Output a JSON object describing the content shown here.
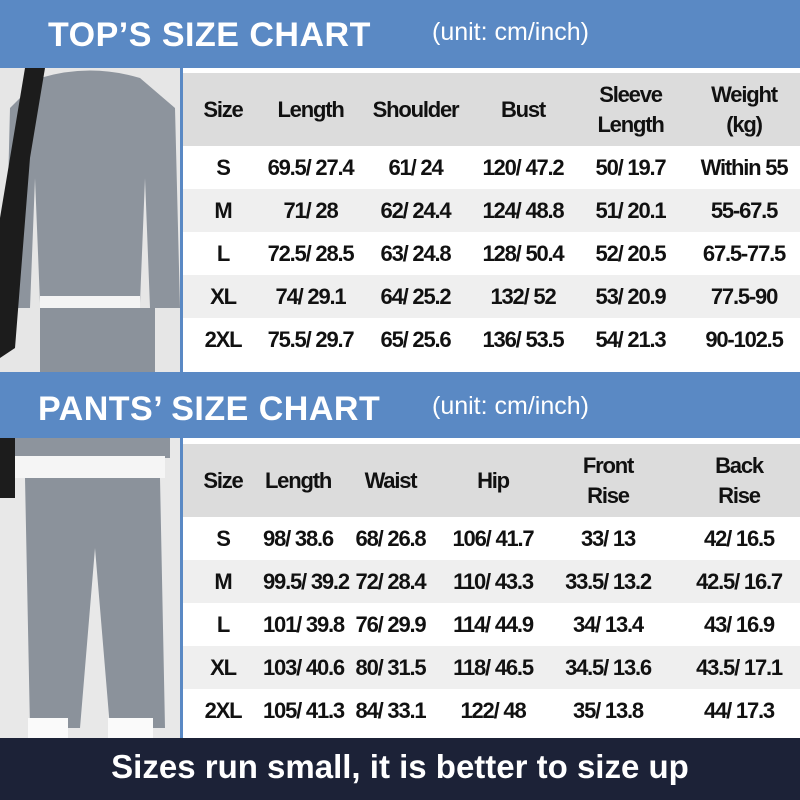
{
  "tops": {
    "title": "TOP’S SIZE CHART",
    "unit": "(unit: cm/inch)",
    "headers": [
      [
        "Size",
        ""
      ],
      [
        "Length",
        ""
      ],
      [
        "Shoulder",
        ""
      ],
      [
        "Bust",
        ""
      ],
      [
        "Sleeve",
        "Length"
      ],
      [
        "Weight",
        "(kg)"
      ]
    ],
    "rows": [
      [
        "S",
        "69.5/ 27.4",
        "61/ 24",
        "120/ 47.2",
        "50/ 19.7",
        "Within 55"
      ],
      [
        "M",
        "71/ 28",
        "62/ 24.4",
        "124/ 48.8",
        "51/ 20.1",
        "55-67.5"
      ],
      [
        "L",
        "72.5/ 28.5",
        "63/ 24.8",
        "128/ 50.4",
        "52/ 20.5",
        "67.5-77.5"
      ],
      [
        "XL",
        "74/ 29.1",
        "64/ 25.2",
        "132/ 52",
        "53/ 20.9",
        "77.5-90"
      ],
      [
        "2XL",
        "75.5/ 29.7",
        "65/ 25.6",
        "136/ 53.5",
        "54/ 21.3",
        "90-102.5"
      ]
    ]
  },
  "pants": {
    "title": "PANTS’ SIZE CHART",
    "unit": "(unit: cm/inch)",
    "headers": [
      [
        "Size",
        ""
      ],
      [
        "Length",
        ""
      ],
      [
        "Waist",
        ""
      ],
      [
        "Hip",
        ""
      ],
      [
        "Front",
        "Rise"
      ],
      [
        "Back",
        "Rise"
      ]
    ],
    "rows": [
      [
        "S",
        "98/ 38.6",
        "68/ 26.8",
        "106/ 41.7",
        "33/ 13",
        "42/ 16.5"
      ],
      [
        "M",
        "99.5/ 39.2",
        "72/ 28.4",
        "110/ 43.3",
        "33.5/ 13.2",
        "42.5/ 16.7"
      ],
      [
        "L",
        "101/ 39.8",
        "76/ 29.9",
        "114/ 44.9",
        "34/ 13.4",
        "43/ 16.9"
      ],
      [
        "XL",
        "103/ 40.6",
        "80/ 31.5",
        "118/ 46.5",
        "34.5/ 13.6",
        "43.5/ 17.1"
      ],
      [
        "2XL",
        "105/ 41.3",
        "84/ 33.1",
        "122/ 48",
        "35/ 13.8",
        "44/ 17.3"
      ]
    ]
  },
  "footer": "Sizes run small, it is better to size up",
  "colors": {
    "banner": "#5a89c4",
    "footer": "#1c2237",
    "header_row": "#dcdcdc",
    "alt_row": "#efefef"
  }
}
